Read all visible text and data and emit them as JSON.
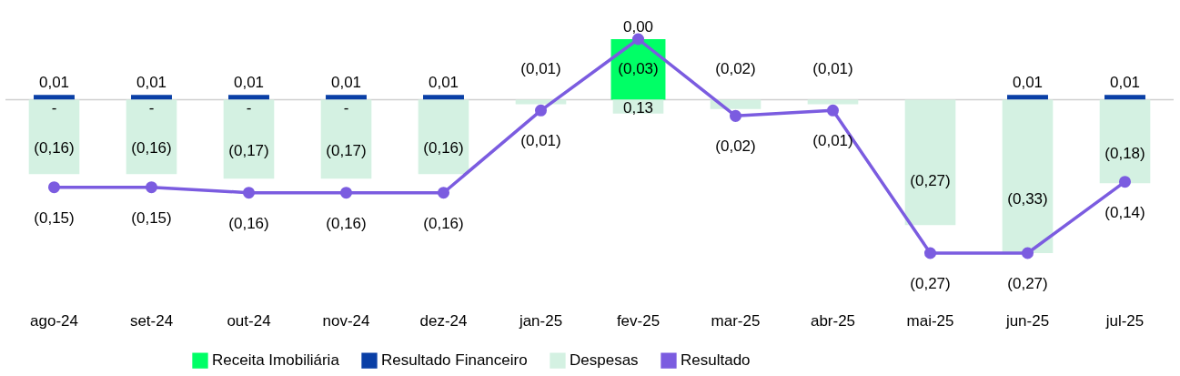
{
  "chart_data": {
    "type": "bar",
    "stacked": true,
    "categories": [
      "ago-24",
      "set-24",
      "out-24",
      "nov-24",
      "dez-24",
      "jan-25",
      "fev-25",
      "mar-25",
      "abr-25",
      "mai-25",
      "jun-25",
      "jul-25"
    ],
    "series": [
      {
        "name": "Receita Imobiliária",
        "color": "#00ff66",
        "values": [
          0,
          0,
          0,
          0,
          null,
          null,
          0.13,
          null,
          null,
          null,
          null,
          null
        ],
        "value_labels": [
          "-",
          "-",
          "-",
          "-",
          null,
          null,
          "0,13",
          null,
          null,
          null,
          null,
          null
        ]
      },
      {
        "name": "Resultado Financeiro",
        "color": "#0a3fa6",
        "values": [
          0.01,
          0.01,
          0.01,
          0.01,
          0.01,
          null,
          0.0,
          null,
          null,
          null,
          0.01,
          0.01
        ],
        "value_labels": [
          "0,01",
          "0,01",
          "0,01",
          "0,01",
          "0,01",
          null,
          "0,00",
          null,
          null,
          null,
          "0,01",
          "0,01"
        ]
      },
      {
        "name": "Despesas",
        "color": "#d4f1e2",
        "values": [
          -0.16,
          -0.16,
          -0.17,
          -0.17,
          -0.16,
          -0.01,
          -0.03,
          -0.02,
          -0.01,
          -0.27,
          -0.33,
          -0.18
        ],
        "value_labels": [
          "(0,16)",
          "(0,16)",
          "(0,17)",
          "(0,17)",
          "(0,16)",
          "(0,01)",
          "(0,03)",
          "(0,02)",
          "(0,01)",
          "(0,27)",
          "(0,33)",
          "(0,18)"
        ]
      },
      {
        "name": "Resultado",
        "type": "line",
        "axis": "y2",
        "color": "#7b5ce0",
        "values": [
          -0.15,
          -0.15,
          -0.16,
          -0.16,
          -0.16,
          -0.01,
          0.12,
          -0.02,
          -0.01,
          -0.27,
          -0.27,
          -0.14
        ],
        "value_labels": [
          "(0,15)",
          "(0,15)",
          "(0,16)",
          "(0,16)",
          "(0,16)",
          "(0,01)",
          null,
          "(0,02)",
          "(0,01)",
          "(0,27)",
          "(0,27)",
          "(0,14)"
        ]
      }
    ],
    "ref_lines": [
      {
        "axis": "y",
        "value": 0,
        "color": "#d0d0d0"
      }
    ],
    "marker": "circle",
    "line_style": "solid",
    "tick_labels": "x",
    "legend": "bottom",
    "grid": false
  }
}
